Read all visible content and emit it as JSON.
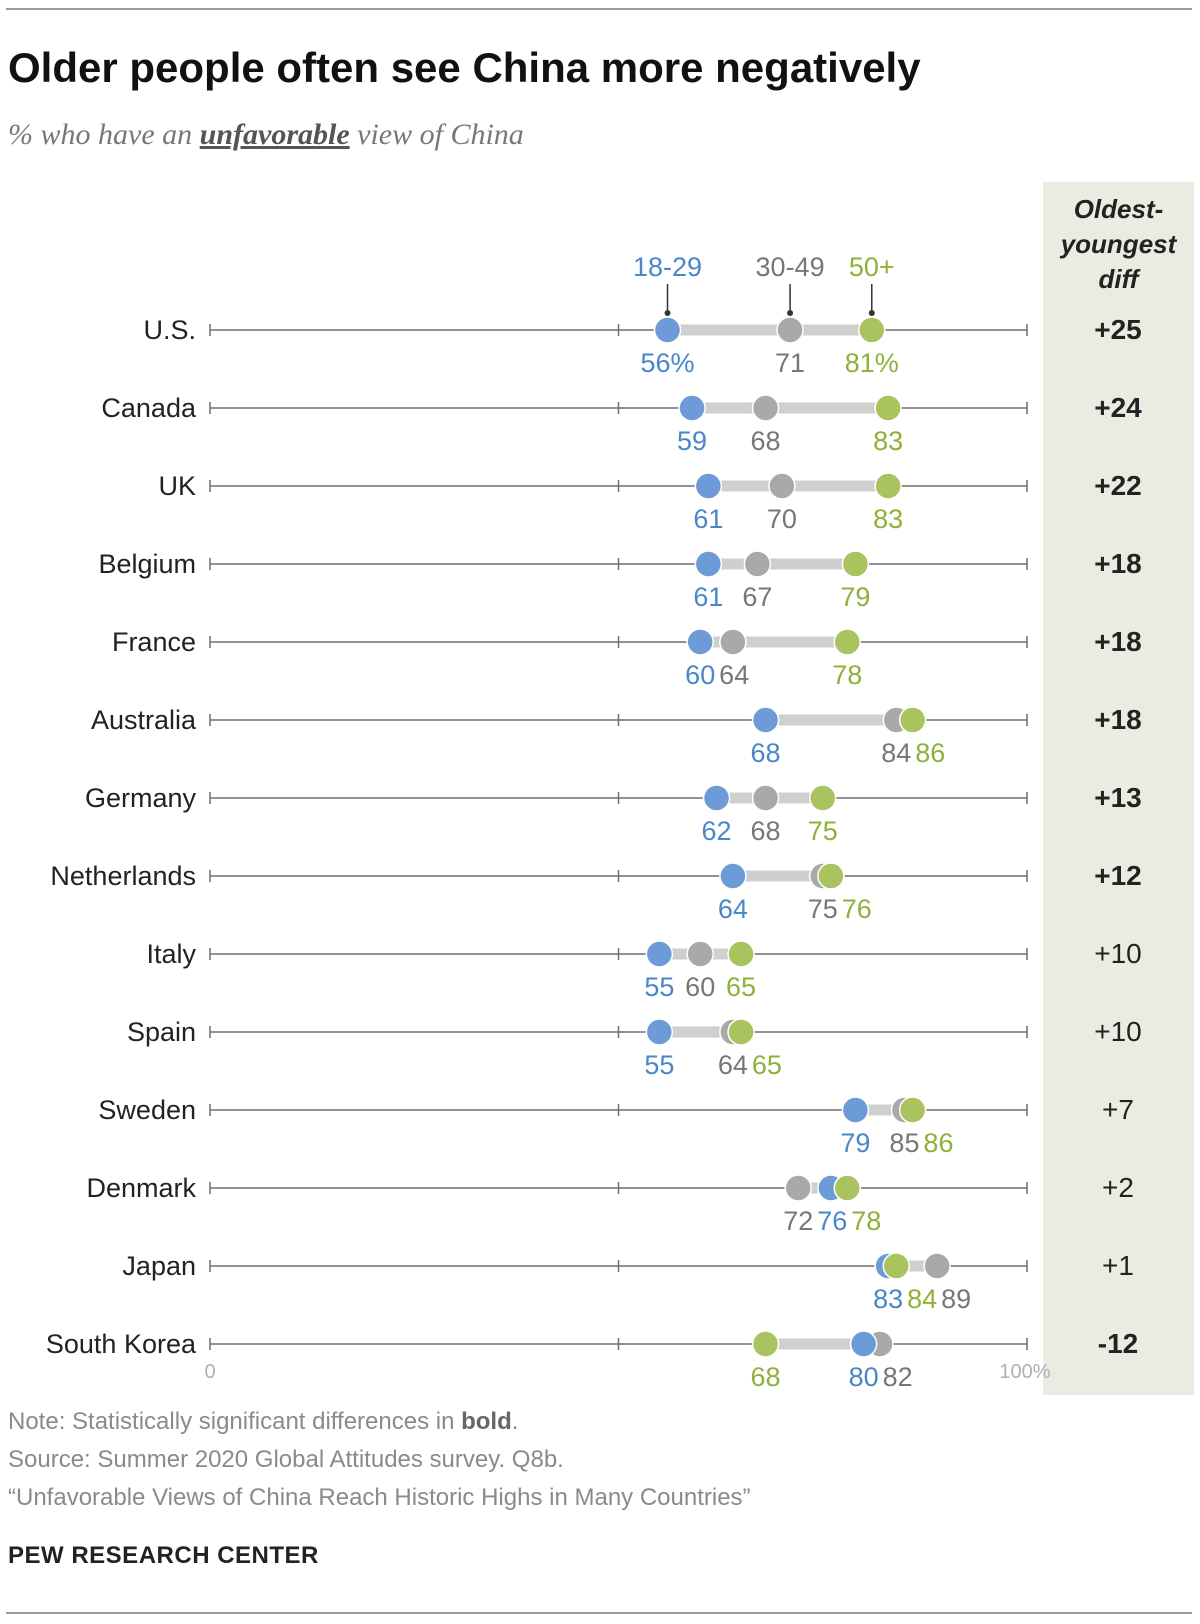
{
  "title": "Older people often see China more negatively",
  "subtitle_pre": "% who have an",
  "subtitle_em": "unfavorable",
  "subtitle_post": "view of China",
  "diff_header": [
    "Oldest-",
    "youngest",
    "diff"
  ],
  "footer": {
    "note_pre": "Note: Statistically significant differences in",
    "note_bold": "bold",
    "note_post": ".",
    "source": "Source: Summer 2020 Global Attitudes survey. Q8b.",
    "report": "“Unfavorable Views of China Reach Historic Highs in Many Countries”",
    "brand": "PEW RESEARCH CENTER"
  },
  "colors": {
    "age_18_29": "#6c9bd8",
    "age_30_49": "#a9a9a9",
    "age_50_plus": "#a9c45e",
    "label_18_29": "#4a86c8",
    "label_30_49": "#777777",
    "label_50_plus": "#8fb03a"
  },
  "chart_data": {
    "type": "dot",
    "xlim": [
      0,
      100
    ],
    "x_tick_labels": [
      "0",
      "100%"
    ],
    "series": [
      {
        "name": "18-29",
        "key": "young"
      },
      {
        "name": "30-49",
        "key": "mid"
      },
      {
        "name": "50+",
        "key": "old"
      }
    ],
    "first_row_suffix": "%",
    "rows": [
      {
        "country": "U.S.",
        "young": 56,
        "mid": 71,
        "old": 81,
        "diff": "+25",
        "significant": true
      },
      {
        "country": "Canada",
        "young": 59,
        "mid": 68,
        "old": 83,
        "diff": "+24",
        "significant": true
      },
      {
        "country": "UK",
        "young": 61,
        "mid": 70,
        "old": 83,
        "diff": "+22",
        "significant": true
      },
      {
        "country": "Belgium",
        "young": 61,
        "mid": 67,
        "old": 79,
        "diff": "+18",
        "significant": true
      },
      {
        "country": "France",
        "young": 60,
        "mid": 64,
        "old": 78,
        "diff": "+18",
        "significant": true
      },
      {
        "country": "Australia",
        "young": 68,
        "mid": 84,
        "old": 86,
        "diff": "+18",
        "significant": true
      },
      {
        "country": "Germany",
        "young": 62,
        "mid": 68,
        "old": 75,
        "diff": "+13",
        "significant": true
      },
      {
        "country": "Netherlands",
        "young": 64,
        "mid": 75,
        "old": 76,
        "diff": "+12",
        "significant": true
      },
      {
        "country": "Italy",
        "young": 55,
        "mid": 60,
        "old": 65,
        "diff": "+10",
        "significant": false
      },
      {
        "country": "Spain",
        "young": 55,
        "mid": 64,
        "old": 65,
        "diff": "+10",
        "significant": false
      },
      {
        "country": "Sweden",
        "young": 79,
        "mid": 85,
        "old": 86,
        "diff": "+7",
        "significant": false
      },
      {
        "country": "Denmark",
        "young": 76,
        "mid": 72,
        "old": 78,
        "diff": "+2",
        "significant": false
      },
      {
        "country": "Japan",
        "young": 83,
        "mid": 89,
        "old": 84,
        "diff": "+1",
        "significant": false
      },
      {
        "country": "South Korea",
        "young": 80,
        "mid": 82,
        "old": 68,
        "diff": "-12",
        "significant": true
      }
    ]
  }
}
